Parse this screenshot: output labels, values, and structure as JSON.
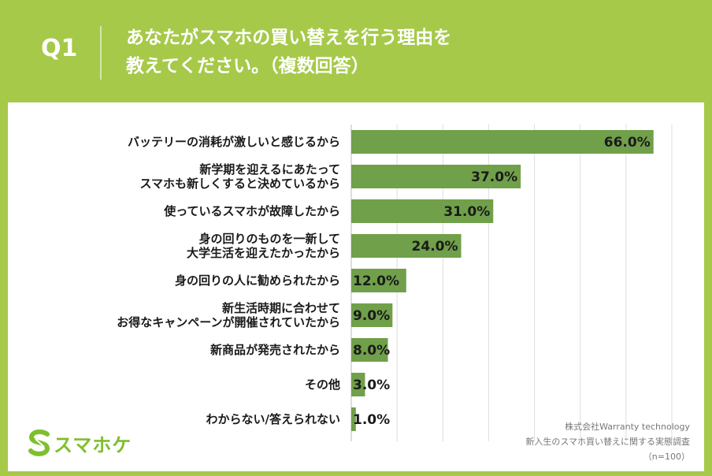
{
  "header": {
    "q_label": "Q1",
    "title_line1": "あなたがスマホの買い替えを行う理由を",
    "title_line2": "教えてください。（複数回答）"
  },
  "logo": {
    "text": "スマホケ",
    "icon": "s-logo-icon"
  },
  "source": {
    "line1": "株式会社Warranty technology",
    "line2": "新入生のスマホ買い替えに関する実態調査",
    "line3": "（n=100）"
  },
  "colors": {
    "background": "#a6c94a",
    "bar": "#70a04a",
    "logo": "#7fbf2e"
  },
  "chart_data": {
    "type": "bar",
    "orientation": "horizontal",
    "categories": [
      [
        "バッテリーの消耗が激しいと感じるから"
      ],
      [
        "新学期を迎えるにあたって",
        "スマホも新しくすると決めているから"
      ],
      [
        "使っているスマホが故障したから"
      ],
      [
        "身の回りのものを一新して",
        "大学生活を迎えたかったから"
      ],
      [
        "身の回りの人に勧められたから"
      ],
      [
        "新生活時期に合わせて",
        "お得なキャンペーンが開催されていたから"
      ],
      [
        "新商品が発売されたから"
      ],
      [
        "その他"
      ],
      [
        "わからない/答えられない"
      ]
    ],
    "values": [
      66.0,
      37.0,
      31.0,
      24.0,
      12.0,
      9.0,
      8.0,
      3.0,
      1.0
    ],
    "value_labels": [
      "66.0%",
      "37.0%",
      "31.0%",
      "24.0%",
      "12.0%",
      "9.0%",
      "8.0%",
      "3.0%",
      "1.0%"
    ],
    "xlim": [
      0,
      70
    ],
    "grid": true
  }
}
